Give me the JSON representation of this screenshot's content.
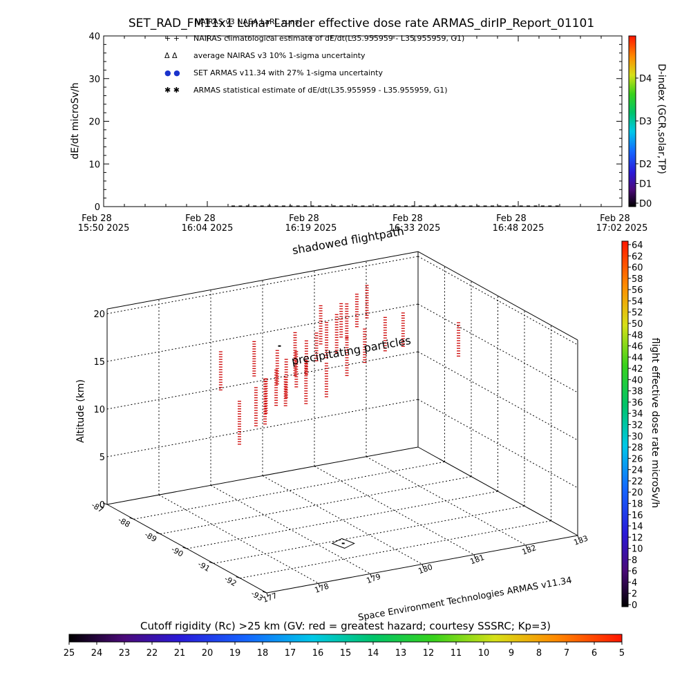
{
  "figure": {
    "title": "SET_RAD_FM11x1 Lunar Lander effective dose rate ARMAS_dirIP_Report_01101",
    "credit": "Space Environment Technologies ARMAS v11.34"
  },
  "colors": {
    "dose_marker": "#cc0000",
    "ts_marker": "#000000",
    "legend_blue": "#1a33cc"
  },
  "chart_data": [
    {
      "type": "scatter",
      "panel": "time-series",
      "legend_header": "NAIRAS v3 NASA LaRC runs",
      "ylabel": "dE/dt microSv/h",
      "ylim": [
        0,
        40
      ],
      "yticks": [
        "0",
        "10",
        "20",
        "30",
        "40"
      ],
      "xticks": [
        {
          "date": "Feb 28",
          "time": "15:50  2025"
        },
        {
          "date": "Feb 28",
          "time": "16:04  2025"
        },
        {
          "date": "Feb 28",
          "time": "16:19  2025"
        },
        {
          "date": "Feb 28",
          "time": "16:33  2025"
        },
        {
          "date": "Feb 28",
          "time": "16:48  2025"
        },
        {
          "date": "Feb 28",
          "time": "17:02  2025"
        }
      ],
      "xlim_minutes_after_1550": [
        0,
        72
      ],
      "legend": [
        {
          "symbol": "+ +",
          "label": "NAIRAS climatological estimate of dE/dt(L35.955959 - L35.955959, G1)"
        },
        {
          "symbol": "Δ Δ",
          "label": "average NAIRAS v3 10% 1-sigma uncertainty"
        },
        {
          "symbol": "● ●",
          "label": "SET ARMAS v11.34 with 27% 1-sigma uncertainty"
        },
        {
          "symbol": "✱ ✱",
          "label": "ARMAS statistical estimate of dE/dt(L35.955959 - L35.955959, G1)"
        }
      ],
      "series_minutes": {
        "start": 18,
        "end": 63,
        "step": 1.0,
        "value": 0
      },
      "dindex_bar": {
        "label": "D-index (GCR,solar,TP)",
        "ticks": [
          "D0",
          "D1",
          "D2",
          "D3",
          "D4"
        ],
        "tick_values": [
          0,
          1,
          2,
          3,
          4
        ]
      }
    },
    {
      "type": "scatter",
      "panel": "3d-flightpath",
      "zlabel": "Altitude (km)",
      "zlim": [
        0,
        20
      ],
      "zticks": [
        "0",
        "5",
        "10",
        "15",
        "20"
      ],
      "xticks": [
        "-87",
        "-88",
        "-89",
        "-90",
        "-91",
        "-92",
        "-93"
      ],
      "yticks": [
        "177",
        "178",
        "179",
        "180",
        "181",
        "182",
        "183"
      ],
      "annotations": [
        "shadowed flightpath",
        "precipitating particles"
      ],
      "dose_bar": {
        "label": "flight effective dose rate microSv/h",
        "min": 0,
        "max": 64,
        "ticks": [
          "0",
          "2",
          "4",
          "6",
          "8",
          "10",
          "12",
          "14",
          "16",
          "18",
          "20",
          "22",
          "24",
          "26",
          "28",
          "30",
          "32",
          "34",
          "36",
          "38",
          "40",
          "42",
          "44",
          "46",
          "48",
          "50",
          "52",
          "54",
          "56",
          "58",
          "60",
          "62",
          "64"
        ]
      },
      "columns": [
        {
          "lon": 177.1,
          "lat": -92.4,
          "ztop": 20.5,
          "zbot": 16.5
        },
        {
          "lon": 177.5,
          "lat": -92.0,
          "ztop": 20.4,
          "zbot": 16.8
        },
        {
          "lon": 177.9,
          "lat": -91.6,
          "ztop": 20.3,
          "zbot": 16.6
        },
        {
          "lon": 178.3,
          "lat": -91.2,
          "ztop": 20.4,
          "zbot": 16.4
        },
        {
          "lon": 178.7,
          "lat": -90.8,
          "ztop": 20.2,
          "zbot": 16.5
        },
        {
          "lon": 179.1,
          "lat": -90.4,
          "ztop": 20.3,
          "zbot": 16.8
        },
        {
          "lon": 179.5,
          "lat": -90.0,
          "ztop": 20.1,
          "zbot": 17.2
        },
        {
          "lon": 179.9,
          "lat": -89.6,
          "ztop": 20.2,
          "zbot": 16.5
        },
        {
          "lon": 180.3,
          "lat": -89.2,
          "ztop": 20.0,
          "zbot": 16.0
        },
        {
          "lon": 180.7,
          "lat": -88.8,
          "ztop": 20.1,
          "zbot": 16.5
        },
        {
          "lon": 181.1,
          "lat": -88.4,
          "ztop": 20.1,
          "zbot": 16.7
        },
        {
          "lon": 181.5,
          "lat": -88.0,
          "ztop": 20.0,
          "zbot": 16.6
        },
        {
          "lon": 177.5,
          "lat": -91.0,
          "ztop": 16.5,
          "zbot": 12.0
        },
        {
          "lon": 178.2,
          "lat": -90.6,
          "ztop": 17.5,
          "zbot": 12.8
        },
        {
          "lon": 178.8,
          "lat": -90.2,
          "ztop": 16.5,
          "zbot": 13.5
        },
        {
          "lon": 179.4,
          "lat": -89.8,
          "ztop": 17.0,
          "zbot": 12.5
        },
        {
          "lon": 180.0,
          "lat": -89.4,
          "ztop": 15.5,
          "zbot": 12.0
        },
        {
          "lon": 180.6,
          "lat": -89.0,
          "ztop": 17.0,
          "zbot": 13.0
        },
        {
          "lon": 181.2,
          "lat": -88.5,
          "ztop": 16.5,
          "zbot": 13.0
        },
        {
          "lon": 181.8,
          "lat": -88.1,
          "ztop": 16.5,
          "zbot": 13.0
        },
        {
          "lon": 182.3,
          "lat": -87.8,
          "ztop": 16.0,
          "zbot": 12.5
        },
        {
          "lon": 177.6,
          "lat": -90.1,
          "ztop": 20.2,
          "zbot": 16.2
        },
        {
          "lon": 178.4,
          "lat": -89.8,
          "ztop": 20.0,
          "zbot": 16.4
        },
        {
          "lon": 179.0,
          "lat": -89.5,
          "ztop": 18.0,
          "zbot": 14.5
        },
        {
          "lon": 179.6,
          "lat": -89.0,
          "ztop": 18.5,
          "zbot": 14.0
        },
        {
          "lon": 180.3,
          "lat": -88.6,
          "ztop": 20.0,
          "zbot": 16.0
        },
        {
          "lon": 180.9,
          "lat": -88.2,
          "ztop": 19.0,
          "zbot": 15.5
        },
        {
          "lon": 182.6,
          "lat": -89.3,
          "ztop": 17.0,
          "zbot": 13.5
        }
      ],
      "marker": {
        "lon": 179.4,
        "lat": -91.2,
        "z": 0
      }
    },
    {
      "type": "heatmap",
      "panel": "cutoff-rigidity-bar",
      "label": "Cutoff rigidity (Rc) >25 km (GV: red = greatest hazard; courtesy SSSRC; Kp=3)",
      "ticks": [
        "25",
        "24",
        "23",
        "22",
        "21",
        "20",
        "19",
        "18",
        "17",
        "16",
        "15",
        "14",
        "13",
        "12",
        "11",
        "10",
        "9",
        "8",
        "7",
        "6",
        "5"
      ],
      "range": [
        25,
        5
      ]
    }
  ]
}
